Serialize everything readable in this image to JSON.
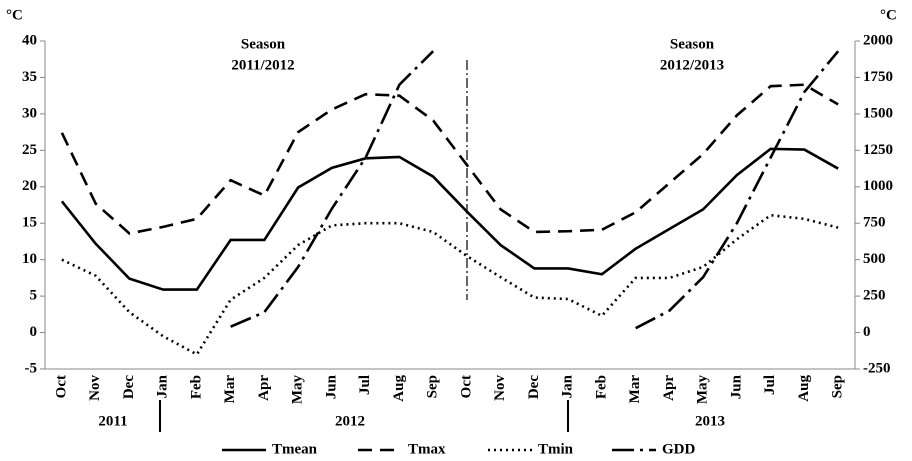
{
  "chart_data": {
    "type": "line",
    "y_unit": "°C",
    "y2_unit": "°C",
    "categories": [
      "Oct",
      "Nov",
      "Dec",
      "Jan",
      "Feb",
      "Mar",
      "Apr",
      "May",
      "Jun",
      "Jul",
      "Aug",
      "Sep",
      "Oct",
      "Nov",
      "Dec",
      "Jan",
      "Feb",
      "Mar",
      "Apr",
      "May",
      "Jun",
      "Jul",
      "Aug",
      "Sep"
    ],
    "years": [
      "2011",
      "2012",
      "2013"
    ],
    "season_labels": [
      [
        "Season",
        "2011/2012"
      ],
      [
        "Season",
        "2012/2013"
      ]
    ],
    "series": [
      {
        "name": "Tmean",
        "color": "#000000",
        "dash": "solid",
        "values": [
          18,
          12.2,
          7.4,
          5.9,
          5.9,
          12.7,
          12.7,
          19.9,
          22.6,
          23.9,
          24.1,
          21.4,
          16.6,
          12,
          8.8,
          8.8,
          8,
          11.5,
          14.2,
          16.9,
          21.6,
          25.2,
          25.1,
          22.5
        ]
      },
      {
        "name": "Tmax",
        "color": "#000000",
        "dash": "dashed",
        "values": [
          27.4,
          17.7,
          13.6,
          14.5,
          15.6,
          20.9,
          18.8,
          27.5,
          30.6,
          32.7,
          32.5,
          29.1,
          23,
          16.9,
          13.8,
          13.9,
          14.1,
          16.5,
          20.5,
          24.5,
          29.8,
          33.8,
          34,
          31.3
        ]
      },
      {
        "name": "Tmin",
        "color": "#000000",
        "dash": "dotted",
        "values": [
          10,
          7.8,
          2.8,
          -0.5,
          -3,
          4.5,
          7.5,
          12,
          14.7,
          15,
          15,
          13.8,
          10.5,
          7.6,
          4.8,
          4.6,
          2.3,
          7.5,
          7.5,
          9,
          12.8,
          16.1,
          15.6,
          14.4
        ]
      },
      {
        "name": "GDD",
        "color": "#000000",
        "dash": "dashdot",
        "axis": "y2",
        "values": [
          null,
          null,
          null,
          null,
          null,
          40,
          140,
          450,
          850,
          1200,
          1700,
          1930,
          null,
          null,
          null,
          null,
          null,
          30,
          150,
          380,
          750,
          1200,
          1650,
          1930
        ]
      }
    ],
    "ylim": [
      -5,
      40
    ],
    "yticks": [
      -5,
      0,
      5,
      10,
      15,
      20,
      25,
      30,
      35,
      40
    ],
    "y2lim": [
      -250,
      2000
    ],
    "y2ticks": [
      -250,
      0,
      250,
      500,
      750,
      1000,
      1250,
      1500,
      1750,
      2000
    ],
    "legend": "bottom"
  }
}
